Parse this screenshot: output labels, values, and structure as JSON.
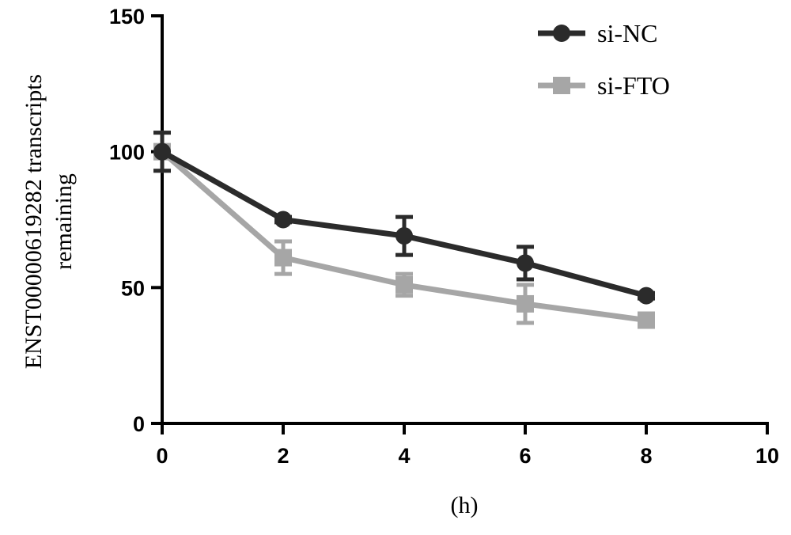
{
  "chart_data": {
    "type": "line",
    "title": "",
    "xlabel": "(h)",
    "ylabel_lines": [
      "ENST00000619282 transcripts",
      "remaining"
    ],
    "x": [
      0,
      2,
      4,
      6,
      8
    ],
    "xlim": [
      0,
      10
    ],
    "ylim": [
      0,
      150
    ],
    "x_ticks": [
      0,
      2,
      4,
      6,
      8,
      10
    ],
    "y_ticks": [
      0,
      50,
      100,
      150
    ],
    "x_tick_labels": [
      "0",
      "2",
      "4",
      "6",
      "8",
      "10"
    ],
    "y_tick_labels": [
      "0",
      "50",
      "100",
      "150"
    ],
    "grid": false,
    "legend_position": "top-right",
    "series": [
      {
        "name": "si-NC",
        "marker": "circle",
        "color": "#2b2b2b",
        "values": [
          100,
          75,
          69,
          59,
          47
        ],
        "errors": [
          7,
          1,
          7,
          6,
          1
        ]
      },
      {
        "name": "si-FTO",
        "marker": "square",
        "color": "#a6a6a6",
        "values": [
          100,
          61,
          51,
          44,
          38
        ],
        "errors": [
          7,
          6,
          4,
          7,
          1
        ]
      }
    ]
  }
}
